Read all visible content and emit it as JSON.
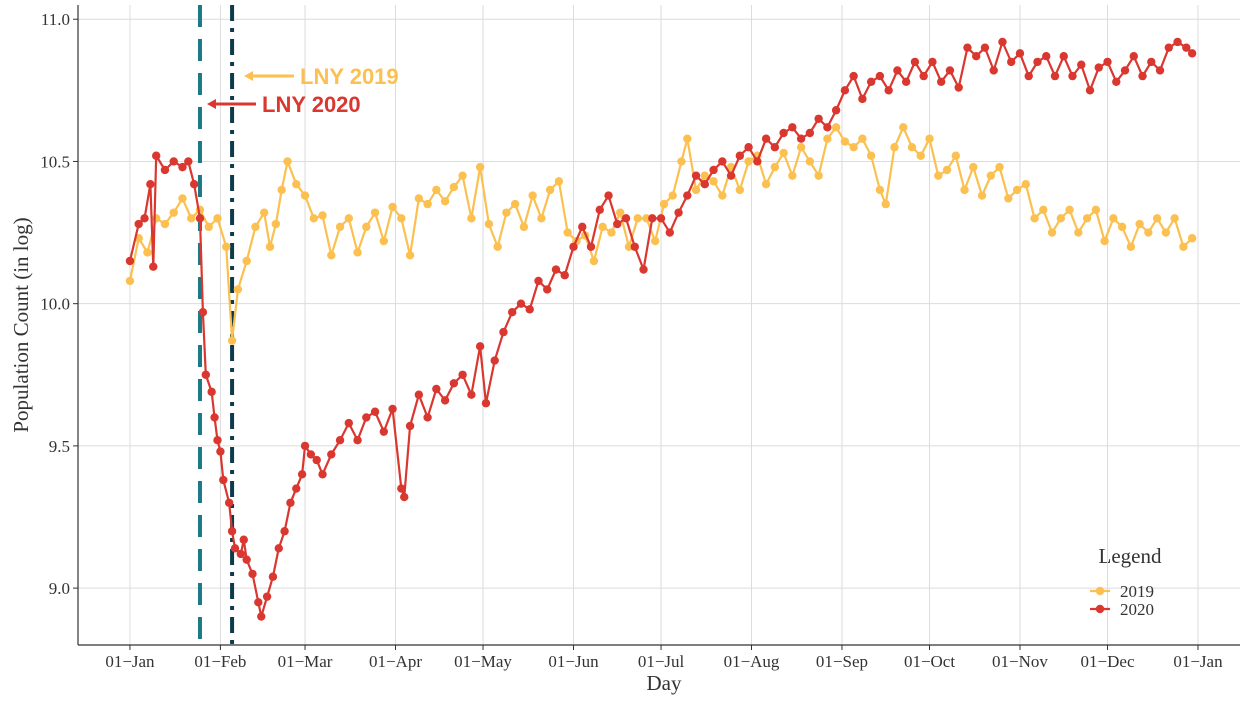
{
  "chart_data": {
    "type": "line",
    "x_label": "Day",
    "y_label": "Population Count (in log)",
    "xlim": [
      -17.8,
      380.4
    ],
    "ylim": [
      8.8,
      11.05
    ],
    "xticks": [
      {
        "value": 0,
        "label": "01−Jan"
      },
      {
        "value": 31,
        "label": "01−Feb"
      },
      {
        "value": 60,
        "label": "01−Mar"
      },
      {
        "value": 91,
        "label": "01−Apr"
      },
      {
        "value": 121,
        "label": "01−May"
      },
      {
        "value": 152,
        "label": "01−Jun"
      },
      {
        "value": 182,
        "label": "01−Jul"
      },
      {
        "value": 213,
        "label": "01−Aug"
      },
      {
        "value": 244,
        "label": "01−Sep"
      },
      {
        "value": 274,
        "label": "01−Oct"
      },
      {
        "value": 305,
        "label": "01−Nov"
      },
      {
        "value": 335,
        "label": "01−Dec"
      },
      {
        "value": 366,
        "label": "01−Jan"
      }
    ],
    "yticks": [
      {
        "value": 9,
        "label": "9.0"
      },
      9.5,
      {
        "value": 10,
        "label": "10.0"
      },
      10.5,
      {
        "value": 11,
        "label": "11.0"
      }
    ],
    "grid": true,
    "legend_title": "Legend",
    "legend_position": "bottom-right",
    "vlines": [
      {
        "x": 24,
        "color": "#1b7a86",
        "style": "dashed"
      },
      {
        "x": 35,
        "color": "#0d3b4c",
        "style": "dashdot"
      }
    ],
    "annotations": [
      {
        "text": "LNY 2019",
        "color": "#fbc050"
      },
      {
        "text": "LNY 2020",
        "color": "#d9372f"
      }
    ],
    "series": [
      {
        "name": "2019",
        "color": "#fbc050",
        "x": [
          0,
          3,
          6,
          9,
          12,
          15,
          18,
          21,
          24,
          27,
          30,
          33,
          35,
          37,
          40,
          43,
          46,
          48,
          50,
          52,
          54,
          57,
          60,
          63,
          66,
          69,
          72,
          75,
          78,
          81,
          84,
          87,
          90,
          93,
          96,
          99,
          102,
          105,
          108,
          111,
          114,
          117,
          120,
          123,
          126,
          129,
          132,
          135,
          138,
          141,
          144,
          147,
          150,
          153,
          156,
          159,
          162,
          165,
          168,
          171,
          174,
          177,
          180,
          183,
          186,
          189,
          191,
          194,
          197,
          200,
          203,
          206,
          209,
          212,
          215,
          218,
          221,
          224,
          227,
          230,
          233,
          236,
          239,
          242,
          245,
          248,
          251,
          254,
          257,
          259,
          262,
          265,
          268,
          271,
          274,
          277,
          280,
          283,
          286,
          289,
          292,
          295,
          298,
          301,
          304,
          307,
          310,
          313,
          316,
          319,
          322,
          325,
          328,
          331,
          334,
          337,
          340,
          343,
          346,
          349,
          352,
          355,
          358,
          361,
          364
        ],
        "values": [
          10.08,
          10.23,
          10.18,
          10.3,
          10.28,
          10.32,
          10.37,
          10.3,
          10.33,
          10.27,
          10.3,
          10.2,
          9.87,
          10.05,
          10.15,
          10.27,
          10.32,
          10.2,
          10.28,
          10.4,
          10.5,
          10.42,
          10.38,
          10.3,
          10.31,
          10.17,
          10.27,
          10.3,
          10.18,
          10.27,
          10.32,
          10.22,
          10.34,
          10.3,
          10.17,
          10.37,
          10.35,
          10.4,
          10.36,
          10.41,
          10.45,
          10.3,
          10.48,
          10.28,
          10.2,
          10.32,
          10.35,
          10.27,
          10.38,
          10.3,
          10.4,
          10.43,
          10.25,
          10.22,
          10.24,
          10.15,
          10.27,
          10.25,
          10.32,
          10.2,
          10.3,
          10.3,
          10.22,
          10.35,
          10.38,
          10.5,
          10.58,
          10.4,
          10.45,
          10.43,
          10.38,
          10.48,
          10.4,
          10.5,
          10.52,
          10.42,
          10.48,
          10.53,
          10.45,
          10.55,
          10.5,
          10.45,
          10.58,
          10.62,
          10.57,
          10.55,
          10.58,
          10.52,
          10.4,
          10.35,
          10.55,
          10.62,
          10.55,
          10.52,
          10.58,
          10.45,
          10.47,
          10.52,
          10.4,
          10.48,
          10.38,
          10.45,
          10.48,
          10.37,
          10.4,
          10.42,
          10.3,
          10.33,
          10.25,
          10.3,
          10.33,
          10.25,
          10.3,
          10.33,
          10.22,
          10.3,
          10.27,
          10.2,
          10.28,
          10.25,
          10.3,
          10.25,
          10.3,
          10.2,
          10.23
        ]
      },
      {
        "name": "2020",
        "color": "#d9372f",
        "x": [
          0,
          3,
          5,
          7,
          8,
          9,
          12,
          15,
          18,
          20,
          22,
          24,
          25,
          26,
          28,
          29,
          30,
          31,
          32,
          34,
          35,
          36,
          38,
          39,
          40,
          42,
          44,
          45,
          47,
          49,
          51,
          53,
          55,
          57,
          59,
          60,
          62,
          64,
          66,
          69,
          72,
          75,
          78,
          81,
          84,
          87,
          90,
          93,
          94,
          96,
          99,
          102,
          105,
          108,
          111,
          114,
          117,
          120,
          122,
          125,
          128,
          131,
          134,
          137,
          140,
          143,
          146,
          149,
          152,
          155,
          158,
          161,
          164,
          167,
          170,
          173,
          176,
          179,
          182,
          185,
          188,
          191,
          194,
          197,
          200,
          203,
          206,
          209,
          212,
          215,
          218,
          221,
          224,
          227,
          230,
          233,
          236,
          239,
          242,
          245,
          248,
          251,
          254,
          257,
          260,
          263,
          266,
          269,
          272,
          275,
          278,
          281,
          284,
          287,
          290,
          293,
          296,
          299,
          302,
          305,
          308,
          311,
          314,
          317,
          320,
          323,
          326,
          329,
          332,
          335,
          338,
          341,
          344,
          347,
          350,
          353,
          356,
          359,
          362,
          364
        ],
        "values": [
          10.15,
          10.28,
          10.3,
          10.42,
          10.13,
          10.52,
          10.47,
          10.5,
          10.48,
          10.5,
          10.42,
          10.3,
          9.97,
          9.75,
          9.69,
          9.6,
          9.52,
          9.48,
          9.38,
          9.3,
          9.2,
          9.14,
          9.12,
          9.17,
          9.1,
          9.05,
          8.95,
          8.9,
          8.97,
          9.04,
          9.14,
          9.2,
          9.3,
          9.35,
          9.4,
          9.5,
          9.47,
          9.45,
          9.4,
          9.47,
          9.52,
          9.58,
          9.52,
          9.6,
          9.62,
          9.55,
          9.63,
          9.35,
          9.32,
          9.57,
          9.68,
          9.6,
          9.7,
          9.66,
          9.72,
          9.75,
          9.68,
          9.85,
          9.65,
          9.8,
          9.9,
          9.97,
          10.0,
          9.98,
          10.08,
          10.05,
          10.12,
          10.1,
          10.2,
          10.27,
          10.2,
          10.33,
          10.38,
          10.28,
          10.3,
          10.2,
          10.12,
          10.3,
          10.3,
          10.25,
          10.32,
          10.38,
          10.45,
          10.42,
          10.47,
          10.5,
          10.45,
          10.52,
          10.55,
          10.5,
          10.58,
          10.55,
          10.6,
          10.62,
          10.58,
          10.6,
          10.65,
          10.62,
          10.68,
          10.75,
          10.8,
          10.72,
          10.78,
          10.8,
          10.75,
          10.82,
          10.78,
          10.85,
          10.8,
          10.85,
          10.78,
          10.82,
          10.76,
          10.9,
          10.87,
          10.9,
          10.82,
          10.92,
          10.85,
          10.88,
          10.8,
          10.85,
          10.87,
          10.8,
          10.87,
          10.8,
          10.84,
          10.75,
          10.83,
          10.85,
          10.78,
          10.82,
          10.87,
          10.8,
          10.85,
          10.82,
          10.9,
          10.92,
          10.9,
          10.88
        ]
      }
    ]
  }
}
